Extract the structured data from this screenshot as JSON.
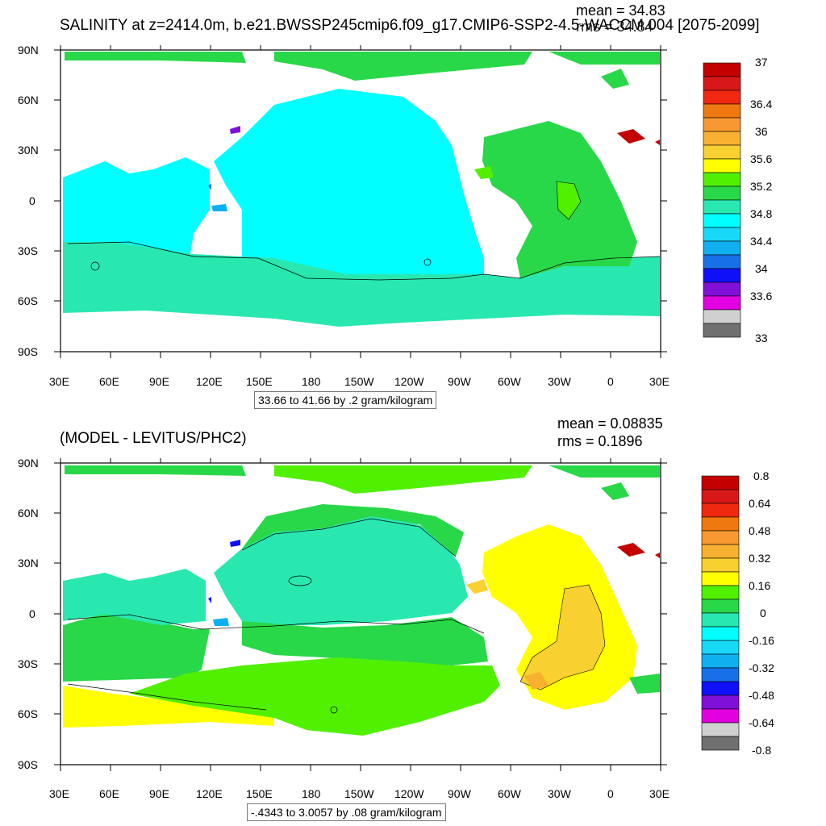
{
  "panels": [
    {
      "title": "SALINITY at z=2414.0m, b.e21.BWSSP245cmip6.f09_g17.CMIP6-SSP2-4.5-WACCM.004 [2075-2099]",
      "mean_text": "mean = 34.83",
      "rms_text": "rms = 34.84",
      "range_label": "33.66 to 41.66 by .2 gram/kilogram",
      "lat_ticks": [
        "90N",
        "60N",
        "30N",
        "0",
        "30S",
        "60S",
        "90S"
      ],
      "lon_ticks": [
        "30E",
        "60E",
        "90E",
        "120E",
        "150E",
        "180",
        "150W",
        "120W",
        "90W",
        "60W",
        "30W",
        "0",
        "30E"
      ],
      "colorbar": {
        "colors": [
          "#c40000",
          "#d81818",
          "#f02810",
          "#f07810",
          "#f89830",
          "#f8b030",
          "#f8d030",
          "#ffff00",
          "#50f000",
          "#28d848",
          "#28e8b0",
          "#00ffff",
          "#18d8f8",
          "#10b0f0",
          "#1870e8",
          "#1010f8",
          "#8010d8",
          "#e000e0",
          "#d0d0d0",
          "#707070"
        ],
        "labels": [
          "37",
          "36.4",
          "36",
          "35.6",
          "35.2",
          "34.8",
          "34.4",
          "34",
          "33.6",
          "33"
        ]
      }
    },
    {
      "title": "(MODEL - LEVITUS/PHC2)",
      "mean_text": "mean = 0.08835",
      "rms_text": "rms = 0.1896",
      "range_label": "-.4343 to 3.0057 by .08 gram/kilogram",
      "lat_ticks": [
        "90N",
        "60N",
        "30N",
        "0",
        "30S",
        "60S",
        "90S"
      ],
      "lon_ticks": [
        "30E",
        "60E",
        "90E",
        "120E",
        "150E",
        "180",
        "150W",
        "120W",
        "90W",
        "60W",
        "30W",
        "0",
        "30E"
      ],
      "colorbar": {
        "colors": [
          "#c40000",
          "#d81818",
          "#f02810",
          "#f07810",
          "#f89830",
          "#f8b030",
          "#f8d030",
          "#ffff00",
          "#50f000",
          "#28d848",
          "#28e8b0",
          "#00ffff",
          "#18d8f8",
          "#10b0f0",
          "#1870e8",
          "#1010f8",
          "#8010d8",
          "#e000e0",
          "#d0d0d0",
          "#707070"
        ],
        "labels": [
          "0.8",
          "0.64",
          "0.48",
          "0.32",
          "0.16",
          "0",
          "-0.16",
          "-0.32",
          "-0.48",
          "-0.64",
          "-0.8"
        ]
      }
    }
  ]
}
